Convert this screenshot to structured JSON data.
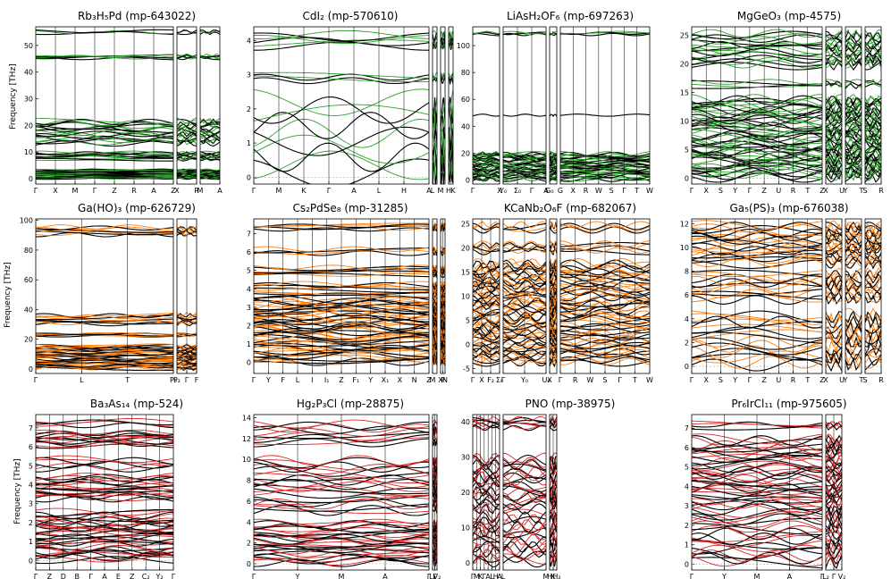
{
  "figure": {
    "ylabel": "Frequency [THz]"
  },
  "colors": {
    "green": "#2ca02c",
    "orange": "#ff7f0e",
    "red": "#d62728",
    "black": "#000000",
    "zero_line": "#aaaaaa"
  },
  "chart_data": [
    {
      "type": "line",
      "title": "Rb₃H₅Pd (mp-643022)",
      "ylim": [
        -2,
        57
      ],
      "yticks": [
        0,
        10,
        20,
        30,
        40,
        50
      ],
      "segments": [
        {
          "labels": [
            "Γ",
            "X",
            "M",
            "Γ",
            "Z",
            "R",
            "A",
            "Z"
          ]
        },
        {
          "labels": [
            "X",
            "R"
          ]
        },
        {
          "labels": [
            "M",
            "A"
          ]
        }
      ],
      "color": "green",
      "bands": [
        [
          0,
          3.5,
          30
        ],
        [
          7,
          10,
          12
        ],
        [
          13,
          22,
          20
        ],
        [
          45,
          46.5,
          6
        ],
        [
          54.5,
          55.5,
          3
        ]
      ]
    },
    {
      "type": "line",
      "title": "CdI₂ (mp-570610)",
      "ylim": [
        -0.2,
        4.4
      ],
      "yticks": [
        0,
        1,
        2,
        3,
        4
      ],
      "segments": [
        {
          "labels": [
            "Γ",
            "M",
            "K",
            "Γ",
            "A",
            "L",
            "H",
            "A"
          ]
        },
        {
          "labels": [
            "L"
          ]
        },
        {
          "labels": [
            "M"
          ]
        },
        {
          "labels": [
            "H",
            "K"
          ]
        }
      ],
      "color": "green",
      "bands": [
        [
          0,
          1.4,
          6
        ],
        [
          1.4,
          2.3,
          4
        ],
        [
          2.8,
          3.0,
          4
        ],
        [
          3.8,
          4.2,
          6
        ]
      ]
    },
    {
      "type": "line",
      "title": "LiAsH₂OF₆ (mp-697263)",
      "ylim": [
        -3,
        114
      ],
      "yticks": [
        0,
        20,
        40,
        60,
        80,
        100
      ],
      "segments": [
        {
          "labels": [
            "Γ",
            "X"
          ]
        },
        {
          "labels": [
            "Y₀",
            "Σ₀",
            "Γ",
            "A"
          ]
        },
        {
          "labels": [
            "G₀"
          ]
        },
        {
          "labels": [
            "G",
            "X",
            "R",
            "W",
            "S",
            "Γ",
            "T",
            "W"
          ]
        }
      ],
      "color": "green",
      "bands": [
        [
          0,
          20,
          40
        ],
        [
          48,
          48.5,
          1
        ],
        [
          108,
          110,
          4
        ]
      ]
    },
    {
      "type": "line",
      "title": "MgGeO₃ (mp-4575)",
      "ylim": [
        -1,
        26.5
      ],
      "yticks": [
        0,
        5,
        10,
        15,
        20,
        25
      ],
      "segments": [
        {
          "labels": [
            "Γ",
            "X",
            "S",
            "Y",
            "Γ",
            "Z",
            "U",
            "R",
            "T",
            "Z"
          ]
        },
        {
          "labels": [
            "X",
            "U"
          ]
        },
        {
          "labels": [
            "Y",
            "T"
          ]
        },
        {
          "labels": [
            "S",
            "R"
          ]
        }
      ],
      "color": "green",
      "bands": [
        [
          0,
          14,
          60
        ],
        [
          16,
          17,
          4
        ],
        [
          19.5,
          25.5,
          20
        ]
      ]
    },
    {
      "type": "line",
      "title": "Ga(HO)₃ (mp-626729)",
      "ylim": [
        -3,
        101
      ],
      "yticks": [
        0,
        20,
        40,
        60,
        80,
        100
      ],
      "segments": [
        {
          "labels": [
            "Γ",
            "L",
            "T",
            "P₀"
          ]
        },
        {
          "labels": [
            "P₂",
            "Γ",
            "F"
          ]
        }
      ],
      "color": "orange",
      "bands": [
        [
          0,
          16,
          40
        ],
        [
          22,
          24,
          6
        ],
        [
          30,
          37,
          10
        ],
        [
          90,
          96,
          8
        ]
      ]
    },
    {
      "type": "line",
      "title": "Cs₂PdSe₈ (mp-31285)",
      "ylim": [
        -0.6,
        7.8
      ],
      "yticks": [
        0,
        1,
        2,
        3,
        4,
        5,
        6,
        7
      ],
      "segments": [
        {
          "labels": [
            "Γ",
            "Y",
            "F",
            "L",
            "I",
            "I₁",
            "Z",
            "F₁",
            "Y",
            "X₁",
            "X",
            "N",
            "Z"
          ]
        },
        {
          "labels": [
            "M"
          ]
        },
        {
          "labels": [
            "X",
            "P",
            "N"
          ]
        }
      ],
      "color": "orange",
      "bands": [
        [
          0,
          3.5,
          60
        ],
        [
          3.6,
          4.3,
          10
        ],
        [
          4.7,
          5.2,
          8
        ],
        [
          5.9,
          6.2,
          4
        ],
        [
          7.2,
          7.5,
          6
        ]
      ]
    },
    {
      "type": "line",
      "title": "KCaNb₂O₆F (mp-682067)",
      "ylim": [
        -6,
        26
      ],
      "yticks": [
        -5,
        0,
        5,
        10,
        15,
        20,
        25
      ],
      "segments": [
        {
          "labels": [
            "Γ",
            "X",
            "F₂",
            "Σ₀"
          ]
        },
        {
          "labels": [
            "Γ",
            "Y₀",
            "U₀"
          ]
        },
        {
          "labels": [
            "X"
          ]
        },
        {
          "labels": [
            "Γ",
            "R",
            "W",
            "S",
            "Γ",
            "T",
            "W"
          ]
        }
      ],
      "color": "orange",
      "bands": [
        [
          -4,
          2,
          20
        ],
        [
          2,
          17,
          50
        ],
        [
          19,
          21,
          6
        ],
        [
          23.5,
          25,
          4
        ]
      ]
    },
    {
      "type": "line",
      "title": "Ga₅(PS)₃ (mp-676038)",
      "ylim": [
        -0.6,
        12.4
      ],
      "yticks": [
        0,
        2,
        4,
        6,
        8,
        10,
        12
      ],
      "segments": [
        {
          "labels": [
            "Γ",
            "X",
            "S",
            "Y",
            "Γ",
            "Z",
            "U",
            "R",
            "T",
            "Z"
          ]
        },
        {
          "labels": [
            "X",
            "U"
          ]
        },
        {
          "labels": [
            "Y",
            "T"
          ]
        },
        {
          "labels": [
            "S",
            "R"
          ]
        }
      ],
      "color": "orange",
      "bands": [
        [
          0,
          4.5,
          20
        ],
        [
          5.5,
          8,
          14
        ],
        [
          8.5,
          12,
          24
        ]
      ]
    },
    {
      "type": "line",
      "title": "Ba₃As₁₄ (mp-524)",
      "ylim": [
        -0.5,
        7.7
      ],
      "yticks": [
        0,
        1,
        2,
        3,
        4,
        5,
        6,
        7
      ],
      "segments": [
        {
          "labels": [
            "Γ",
            "Z",
            "D",
            "B",
            "Γ",
            "A",
            "E",
            "Z",
            "C₂",
            "Y₂",
            "Γ"
          ]
        }
      ],
      "color": "red",
      "bands": [
        [
          0,
          2.6,
          40
        ],
        [
          3.2,
          4.5,
          20
        ],
        [
          4.8,
          5.4,
          6
        ],
        [
          6.0,
          6.8,
          14
        ],
        [
          7.1,
          7.4,
          4
        ]
      ]
    },
    {
      "type": "line",
      "title": "Hg₂P₃Cl (mp-28875)",
      "ylim": [
        -0.6,
        14.3
      ],
      "yticks": [
        0,
        2,
        4,
        6,
        8,
        10,
        12,
        14
      ],
      "segments": [
        {
          "labels": [
            "Γ",
            "Y",
            "M",
            "A",
            "Γ"
          ]
        },
        {
          "labels": [
            "L₂",
            "Γ",
            "V₂"
          ]
        }
      ],
      "color": "red",
      "bands": [
        [
          0,
          4,
          30
        ],
        [
          5,
          10,
          24
        ],
        [
          11.5,
          13.5,
          10
        ]
      ]
    },
    {
      "type": "line",
      "title": "PNO (mp-38975)",
      "ylim": [
        -2,
        42
      ],
      "yticks": [
        0,
        10,
        20,
        30,
        40
      ],
      "segments": [
        {
          "labels": [
            "Γ",
            "M",
            "K",
            "Γ",
            "A",
            "L",
            "H",
            "A"
          ]
        },
        {
          "labels": [
            "L",
            "M"
          ]
        },
        {
          "labels": [
            "H",
            "K",
            "H₂"
          ]
        }
      ],
      "color": "red",
      "bands": [
        [
          0,
          14,
          20
        ],
        [
          15,
          30,
          24
        ],
        [
          38,
          41,
          8
        ]
      ]
    },
    {
      "type": "line",
      "title": "Pr₆IrCl₁₁ (mp-975605)",
      "ylim": [
        -0.3,
        7.7
      ],
      "yticks": [
        0,
        1,
        2,
        3,
        4,
        5,
        6,
        7
      ],
      "segments": [
        {
          "labels": [
            "Γ",
            "Y",
            "M",
            "A",
            "Γ"
          ]
        },
        {
          "labels": [
            "L₂",
            "Γ",
            "V₂"
          ]
        }
      ],
      "color": "red",
      "bands": [
        [
          0,
          3,
          24
        ],
        [
          3,
          6.5,
          40
        ],
        [
          7.0,
          7.3,
          4
        ]
      ]
    }
  ]
}
